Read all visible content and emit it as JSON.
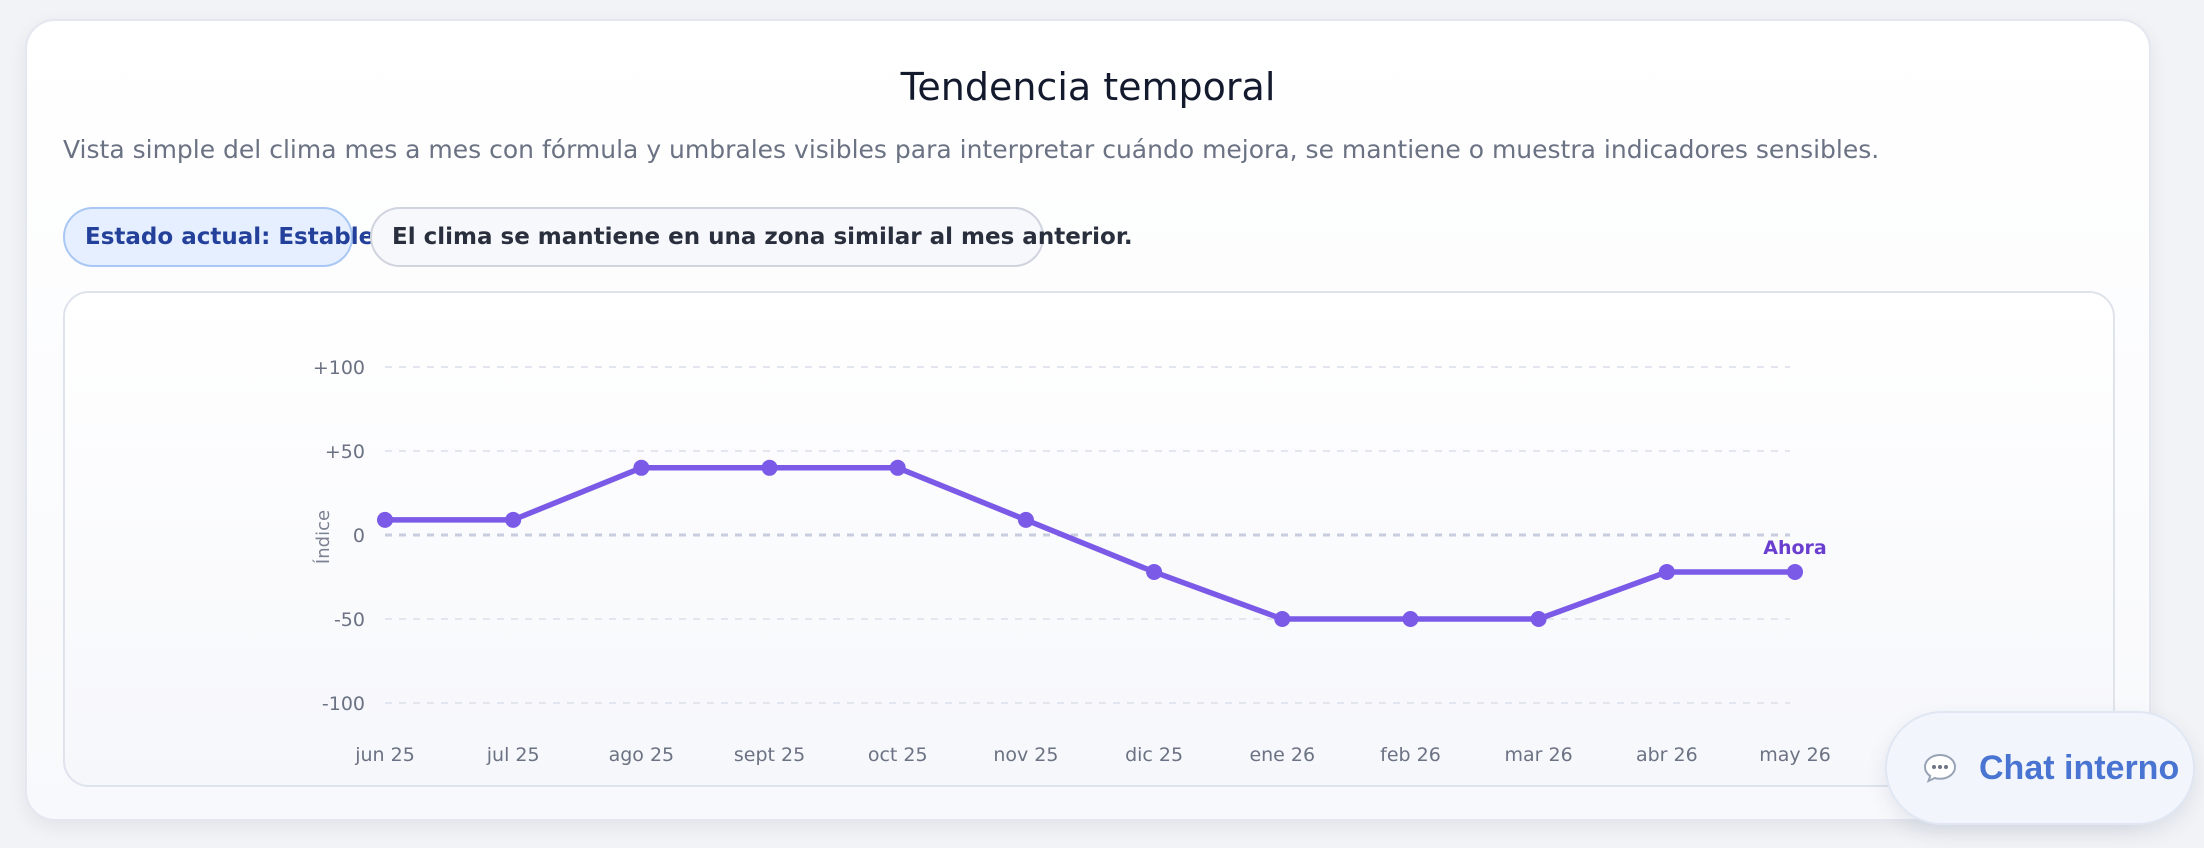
{
  "card": {
    "title": "Tendencia temporal",
    "subtitle": "Vista simple del clima mes a mes con fórmula y umbrales visibles para interpretar cuándo mejora, se mantiene o muestra indicadores sensibles.",
    "status_pill": "Estado actual: Estable",
    "note_pill": "El clima se mantiene en una zona similar al mes anterior."
  },
  "chart_data": {
    "type": "line",
    "categories": [
      "jun 25",
      "jul 25",
      "ago 25",
      "sept 25",
      "oct 25",
      "nov 25",
      "dic 25",
      "ene 26",
      "feb 26",
      "mar 26",
      "abr 26",
      "may 26"
    ],
    "series": [
      {
        "values": [
          9,
          9,
          40,
          40,
          40,
          9,
          -22,
          -50,
          -50,
          -50,
          -22,
          -22
        ]
      }
    ],
    "ylabel": "Índice",
    "ylim": [
      -100,
      100
    ],
    "yticks": [
      "+100",
      "+50",
      "0",
      "-50",
      "-100"
    ],
    "ytick_values": [
      100,
      50,
      0,
      -50,
      -100
    ],
    "grid": true,
    "annotation": {
      "text": "Ahora",
      "category": "may 26"
    },
    "colors": {
      "line": "#7a5ae6",
      "annotation": "#6a3fd0",
      "grid": "#e3e6ee",
      "zero_line": "#c8cde0"
    }
  },
  "chat": {
    "label": "Chat interno",
    "icon": "speech-bubble-icon"
  }
}
